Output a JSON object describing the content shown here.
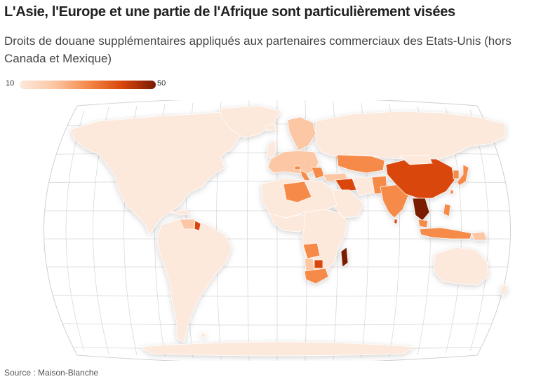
{
  "header": {
    "title": "L'Asie, l'Europe et une partie de l'Afrique sont particulièrement visées",
    "subtitle": "Droits de douane supplémentaires appliqués aux partenaires commerciaux des Etats-Unis (hors Canada et Mexique)"
  },
  "legend": {
    "min_label": "10",
    "max_label": "50",
    "colors": [
      "#fde9dc",
      "#fbc7a5",
      "#f58a4a",
      "#d9460c",
      "#7a1a05"
    ]
  },
  "map": {
    "projection": "Robinson",
    "base_color": "#fde9dc",
    "graticule": true
  },
  "footer": {
    "source": "Source : Maison-Blanche"
  }
}
